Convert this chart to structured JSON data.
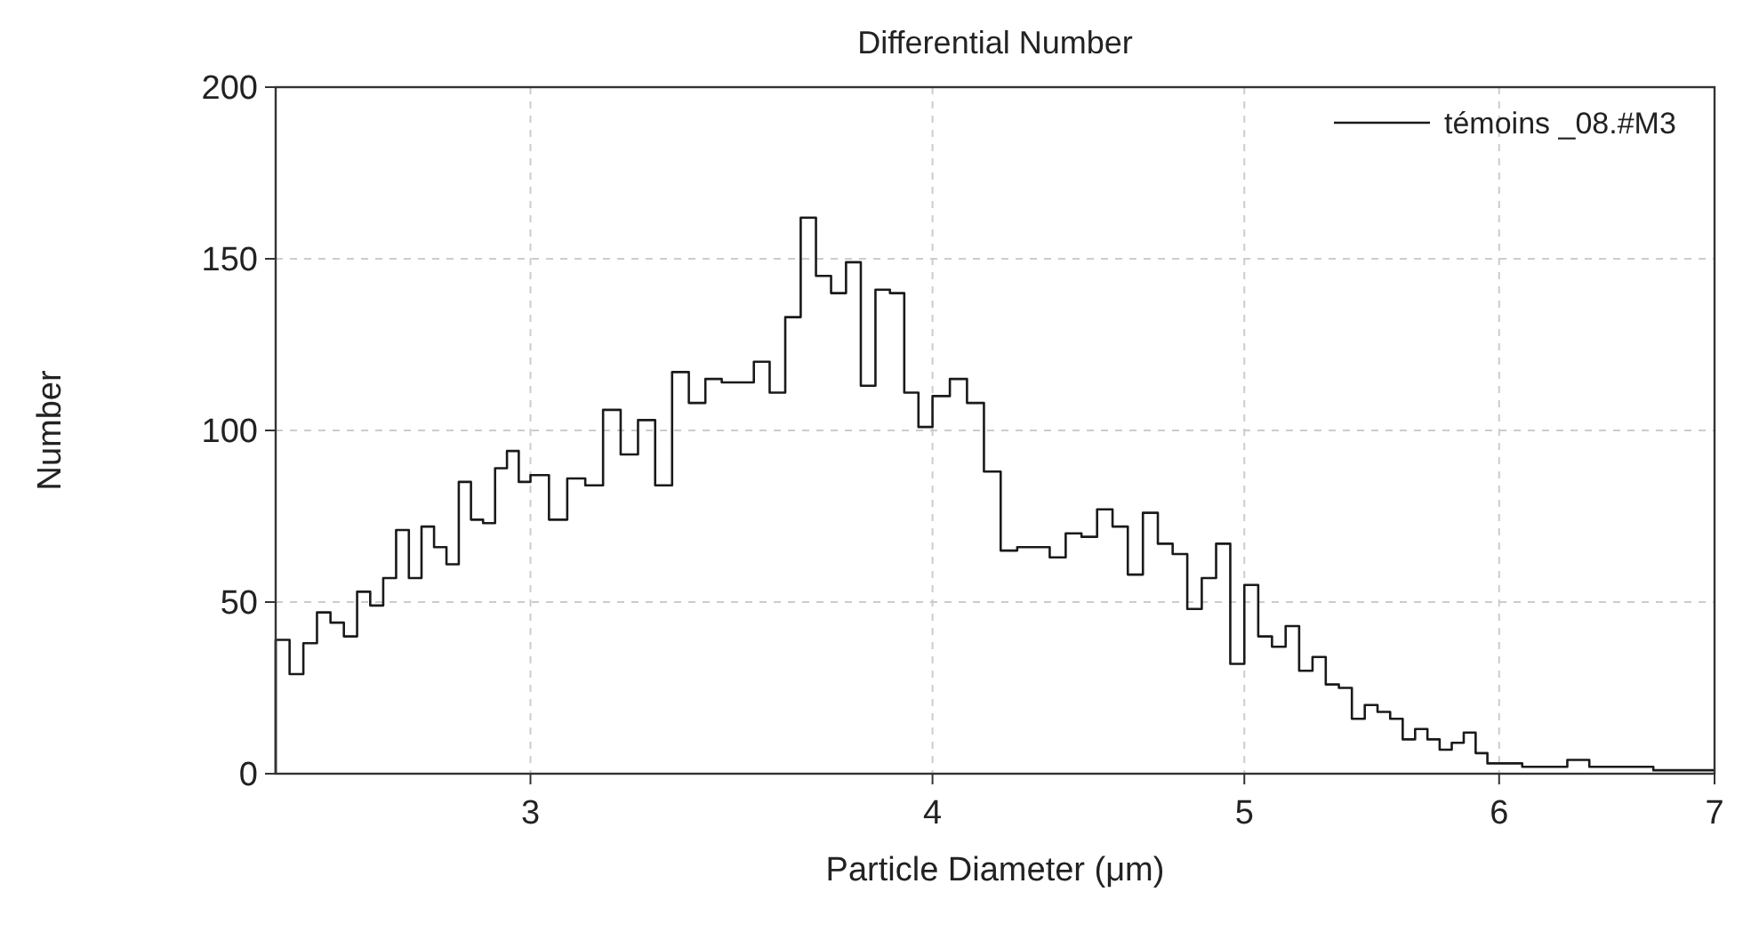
{
  "chart_data": {
    "type": "histogram",
    "title": "Differential Number",
    "xlabel": "Particle Diameter (μm)",
    "ylabel": "Number",
    "log": "x",
    "xlim": [
      2.5,
      7
    ],
    "xticks": [
      3,
      4,
      5,
      6,
      7
    ],
    "ylim": [
      0,
      200
    ],
    "yticks": [
      0,
      50,
      100,
      150,
      200
    ],
    "grid": true,
    "legend": "top right",
    "bins": [
      2.5,
      2.525,
      2.55,
      2.575,
      2.6,
      2.625,
      2.65,
      2.675,
      2.7,
      2.725,
      2.75,
      2.775,
      2.8,
      2.825,
      2.85,
      2.875,
      2.9,
      2.925,
      2.95,
      2.975,
      3.0,
      3.04,
      3.08,
      3.12,
      3.16,
      3.2,
      3.24,
      3.28,
      3.32,
      3.36,
      3.4,
      3.44,
      3.48,
      3.52,
      3.56,
      3.6,
      3.64,
      3.68,
      3.72,
      3.76,
      3.8,
      3.84,
      3.88,
      3.92,
      3.96,
      4.0,
      4.05,
      4.1,
      4.15,
      4.2,
      4.25,
      4.3,
      4.35,
      4.4,
      4.45,
      4.5,
      4.55,
      4.6,
      4.65,
      4.7,
      4.75,
      4.8,
      4.85,
      4.9,
      4.95,
      5.0,
      5.05,
      5.1,
      5.15,
      5.2,
      5.25,
      5.3,
      5.35,
      5.4,
      5.45,
      5.5,
      5.55,
      5.6,
      5.65,
      5.7,
      5.75,
      5.8,
      5.85,
      5.9,
      5.95,
      6.0,
      6.1,
      6.2,
      6.3,
      6.4,
      6.5,
      6.6,
      6.7,
      6.8,
      6.9,
      7.0
    ],
    "series": [
      {
        "name": "témoins _08.#M3",
        "color": "#1a1a1a",
        "values": [
          39,
          29,
          38,
          47,
          44,
          40,
          53,
          49,
          57,
          71,
          57,
          72,
          66,
          61,
          85,
          74,
          73,
          89,
          94,
          85,
          87,
          74,
          86,
          84,
          106,
          93,
          103,
          84,
          117,
          108,
          115,
          114,
          114,
          120,
          111,
          133,
          162,
          145,
          140,
          149,
          113,
          141,
          140,
          111,
          101,
          110,
          115,
          108,
          88,
          65,
          66,
          66,
          63,
          70,
          69,
          77,
          72,
          58,
          76,
          67,
          64,
          48,
          57,
          67,
          32,
          55,
          40,
          37,
          43,
          30,
          34,
          26,
          25,
          16,
          20,
          18,
          16,
          10,
          13,
          10,
          7,
          9,
          12,
          6,
          3,
          3,
          2,
          2,
          4,
          2,
          2,
          2,
          1,
          1,
          1
        ]
      }
    ]
  }
}
